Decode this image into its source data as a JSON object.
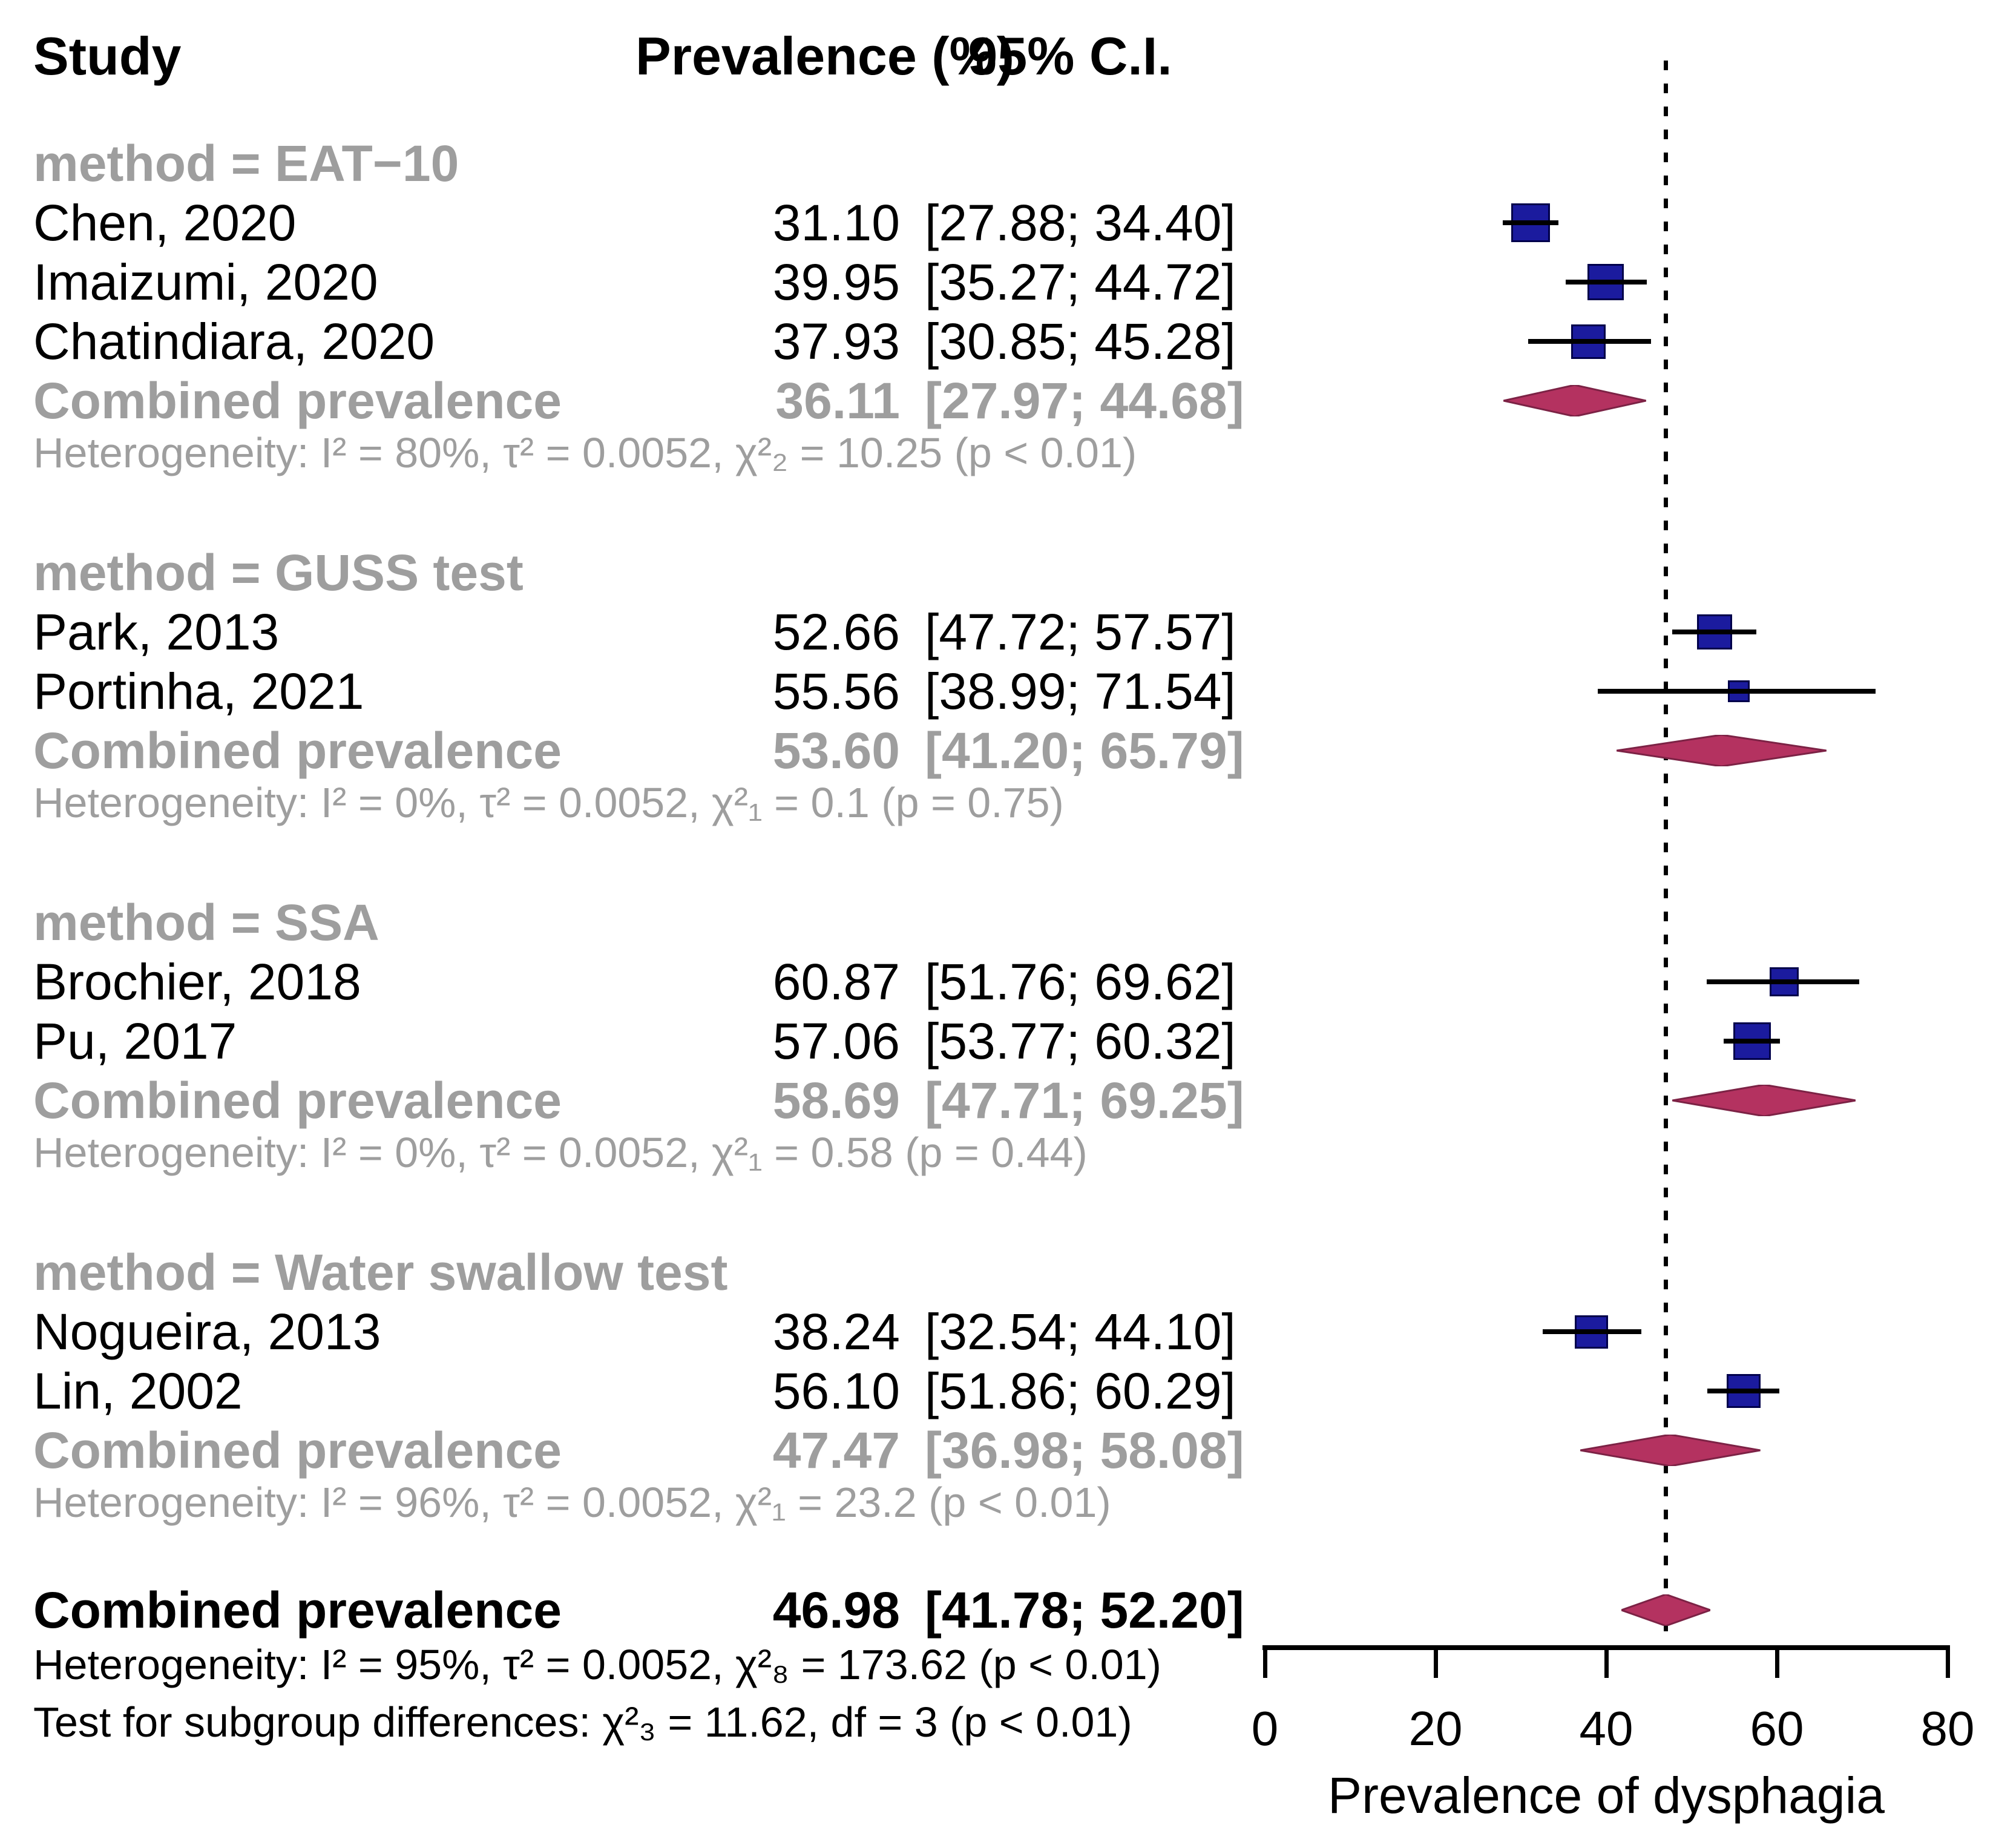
{
  "header": {
    "study": "Study",
    "prevalence": "Prevalence (%)",
    "ci": "95% C.I."
  },
  "colors": {
    "square_fill": "#1b1b9e",
    "square_border": "#00004a",
    "diamond_fill": "#b43260",
    "diamond_border": "#7c2245",
    "subgroup_gray": "#9e9e9e",
    "text_black": "#000000"
  },
  "chart_data": {
    "type": "forest",
    "xlabel": "Prevalence of dysphagia",
    "xlim": [
      0,
      80
    ],
    "xticks": [
      0,
      20,
      40,
      60,
      80
    ],
    "reference_line": 46.98,
    "grid": false,
    "sections": [
      {
        "label": "method = EAT−10",
        "studies": [
          {
            "name": "Chen, 2020",
            "est": 31.1,
            "lo": 27.88,
            "hi": 34.4,
            "size": 64
          },
          {
            "name": "Imaizumi, 2020",
            "est": 39.95,
            "lo": 35.27,
            "hi": 44.72,
            "size": 60
          },
          {
            "name": "Chatindiara, 2020",
            "est": 37.93,
            "lo": 30.85,
            "hi": 45.28,
            "size": 57
          }
        ],
        "combined": {
          "name": "Combined prevalence",
          "est": 36.11,
          "lo": 27.97,
          "hi": 44.68
        },
        "heterogeneity": "Heterogeneity: I² = 80%, τ² = 0.0052, χ²₂ = 10.25 (p < 0.01)"
      },
      {
        "label": "method = GUSS test",
        "studies": [
          {
            "name": "Park, 2013",
            "est": 52.66,
            "lo": 47.72,
            "hi": 57.57,
            "size": 58
          },
          {
            "name": "Portinha, 2021",
            "est": 55.56,
            "lo": 38.99,
            "hi": 71.54,
            "size": 36
          }
        ],
        "combined": {
          "name": "Combined prevalence",
          "est": 53.6,
          "lo": 41.2,
          "hi": 65.79
        },
        "heterogeneity": "Heterogeneity: I² = 0%, τ² = 0.0052, χ²₁ = 0.1 (p = 0.75)"
      },
      {
        "label": "method = SSA",
        "studies": [
          {
            "name": "Brochier, 2018",
            "est": 60.87,
            "lo": 51.76,
            "hi": 69.62,
            "size": 48
          },
          {
            "name": "Pu, 2017",
            "est": 57.06,
            "lo": 53.77,
            "hi": 60.32,
            "size": 62
          }
        ],
        "combined": {
          "name": "Combined prevalence",
          "est": 58.69,
          "lo": 47.71,
          "hi": 69.25
        },
        "heterogeneity": "Heterogeneity: I² = 0%, τ² = 0.0052, χ²₁ = 0.58 (p = 0.44)"
      },
      {
        "label": "method = Water swallow test",
        "studies": [
          {
            "name": "Nogueira, 2013",
            "est": 38.24,
            "lo": 32.54,
            "hi": 44.1,
            "size": 55
          },
          {
            "name": "Lin, 2002",
            "est": 56.1,
            "lo": 51.86,
            "hi": 60.29,
            "size": 56
          }
        ],
        "combined": {
          "name": "Combined prevalence",
          "est": 47.47,
          "lo": 36.98,
          "hi": 58.08
        },
        "heterogeneity": "Heterogeneity: I² = 96%, τ² = 0.0052, χ²₁ = 23.2 (p < 0.01)"
      }
    ],
    "overall": {
      "name": "Combined prevalence",
      "est": 46.98,
      "lo": 41.78,
      "hi": 52.2,
      "heterogeneity": "Heterogeneity: I² = 95%, τ² = 0.0052, χ²₈ = 173.62 (p < 0.01)",
      "subgroup_test": "Test for subgroup differences: χ²₃ = 11.62, df = 3 (p < 0.01)"
    }
  }
}
